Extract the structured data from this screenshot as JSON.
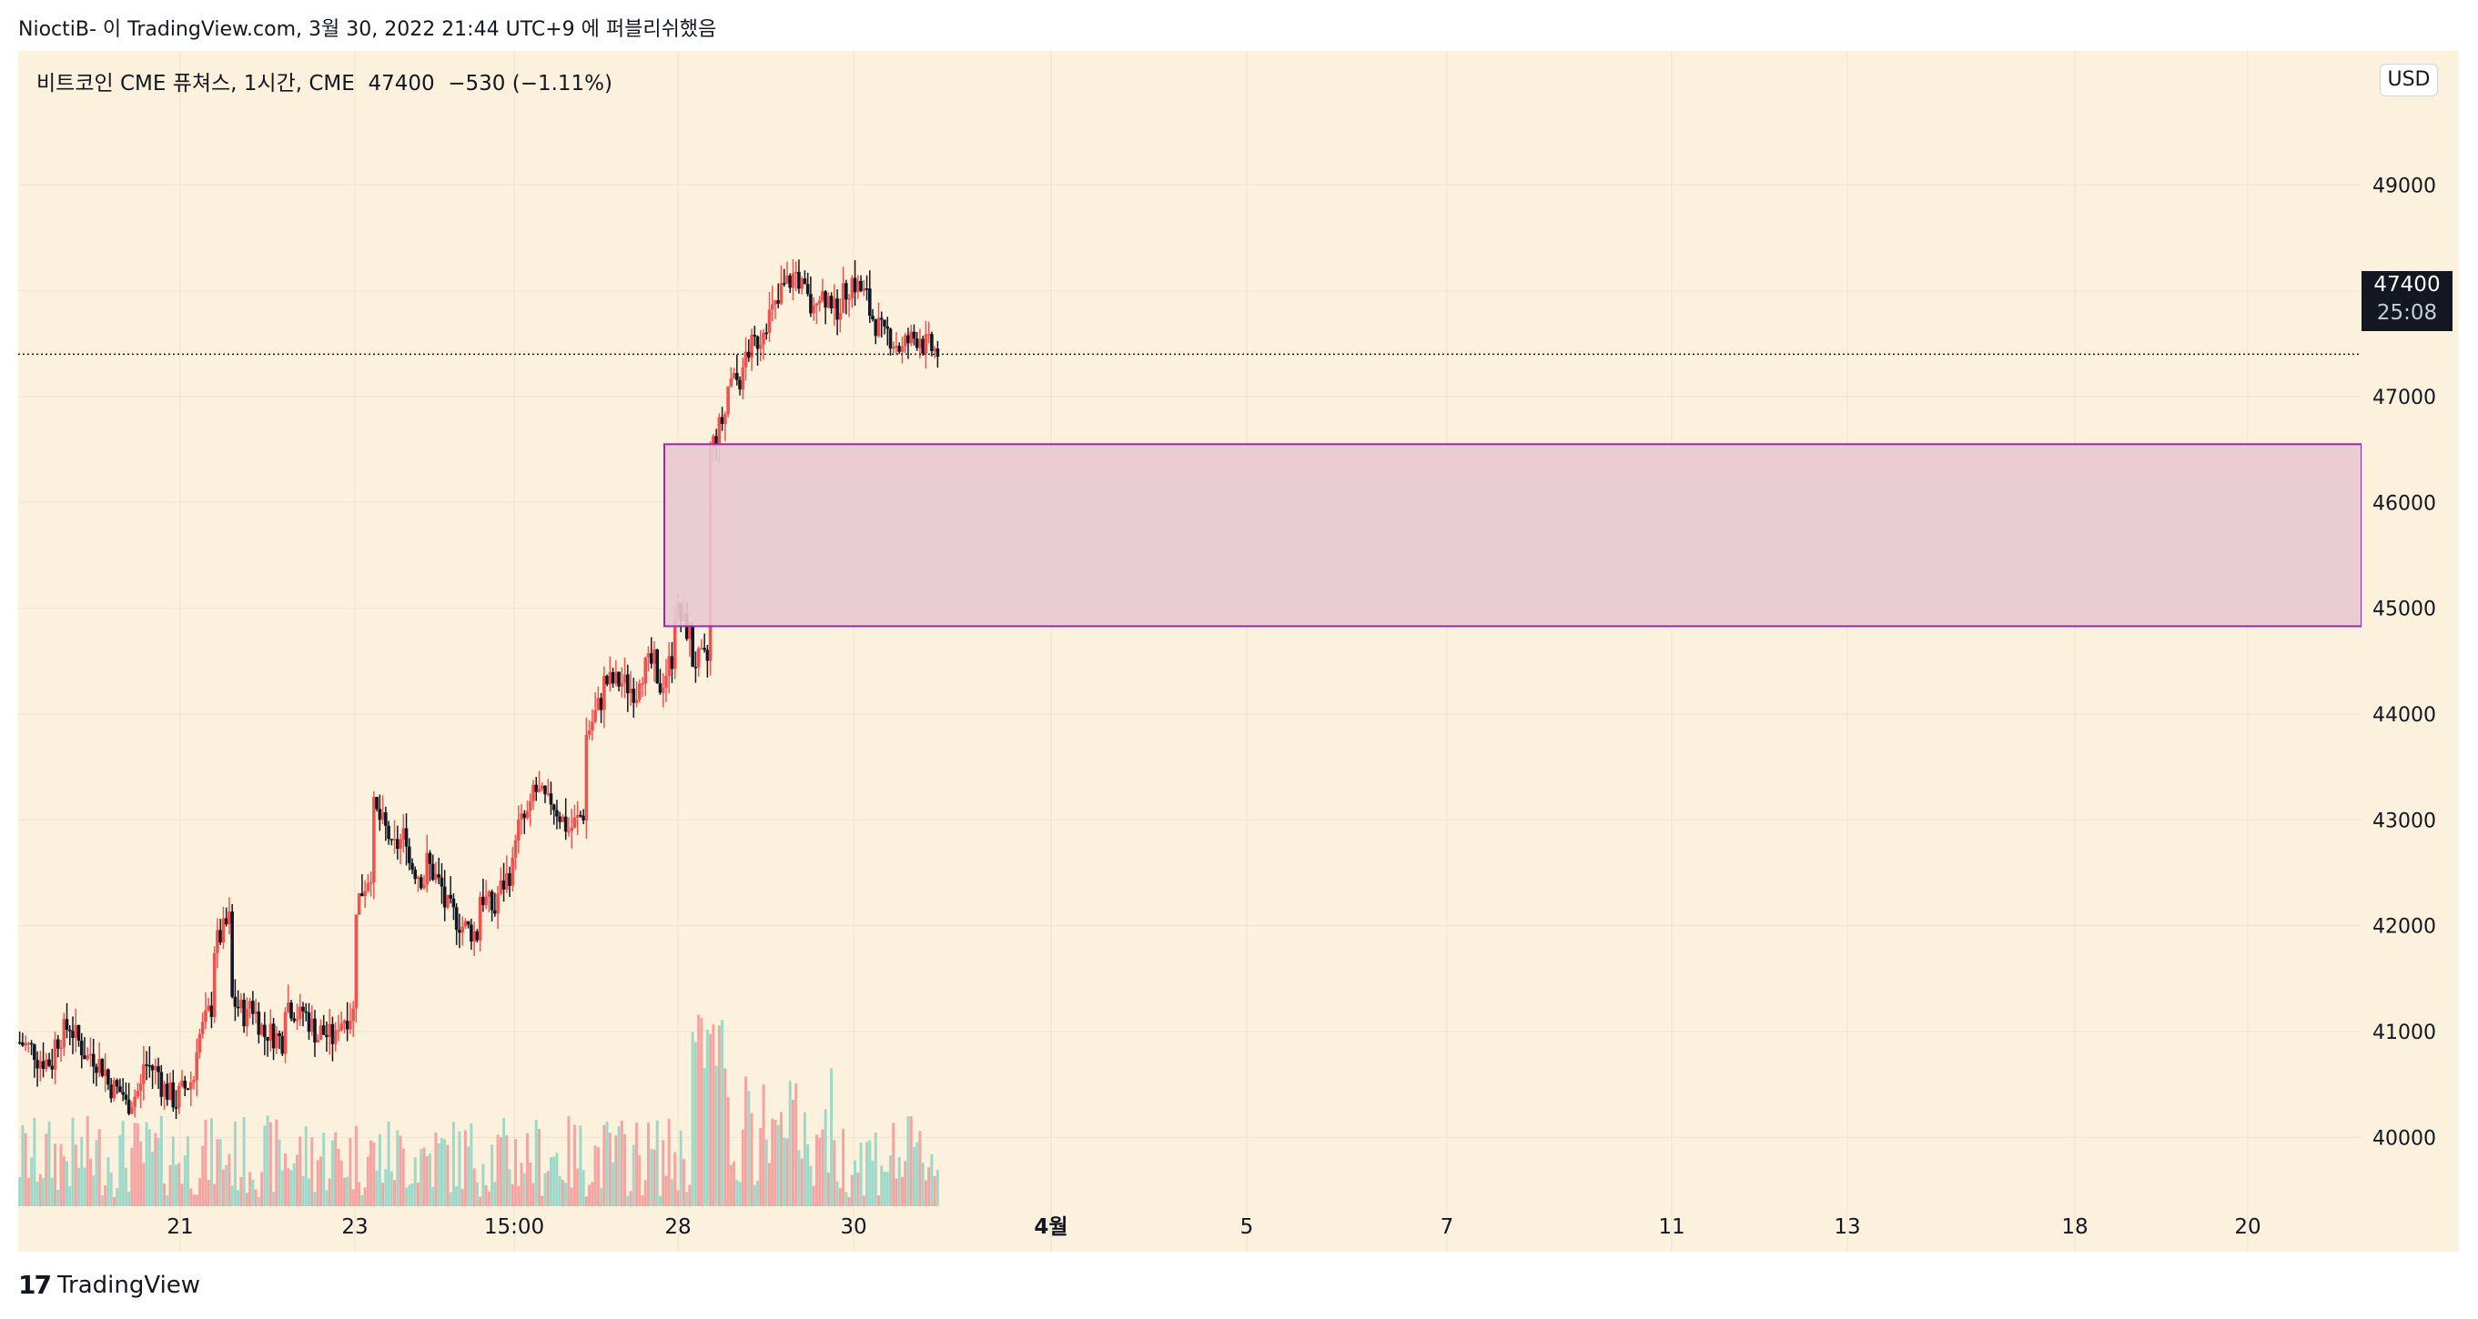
{
  "header": {
    "text": "NioctiB- 이 TradingView.com, 3월 30, 2022 21:44 UTC+9 에 퍼블리쉬했음"
  },
  "legend": {
    "title": "비트코인 CME 퓨쳐스, 1시간, CME",
    "last": "47400",
    "change": "−530 (−1.11%)"
  },
  "currency_button": "USD",
  "price_label": {
    "value": "47400",
    "countdown": "25:08"
  },
  "footer": {
    "logo": "17",
    "brand": "TradingView"
  },
  "colors": {
    "background": "#fcf1dc",
    "up": "#ef5350",
    "down": "#131722",
    "zone_fill": "#e8c8d2",
    "zone_border": "#9c27b0"
  },
  "chart_data": {
    "type": "candlestick",
    "title": "비트코인 CME 퓨쳐스, 1시간, CME",
    "y_ticks": [
      "40000",
      "41000",
      "42000",
      "43000",
      "44000",
      "45000",
      "46000",
      "47000",
      "48000",
      "49000"
    ],
    "x_ticks": [
      "21",
      "23",
      "15:00",
      "28",
      "30",
      "4월",
      "5",
      "7",
      "11",
      "13",
      "18",
      "20"
    ],
    "ylim": [
      39350,
      49750
    ],
    "grid": true,
    "zone": {
      "low": 44830,
      "high": 46550,
      "start": "27",
      "color": "#e8c8d2",
      "border": "#9c27b0"
    },
    "last_price": 47400,
    "price_path": [
      [
        40900,
        40800
      ],
      [
        40750,
        40700
      ],
      [
        40900,
        41100
      ],
      [
        41000,
        40700
      ],
      [
        40800,
        40600
      ],
      [
        40500,
        40400
      ],
      [
        40300,
        40500
      ],
      [
        40700,
        40600
      ],
      [
        40500,
        40300
      ],
      [
        40400,
        40600
      ],
      [
        40900,
        41300
      ],
      [
        41800,
        42100
      ],
      [
        41300,
        41100
      ],
      [
        41300,
        40900
      ],
      [
        41000,
        40900
      ],
      [
        41300,
        41100
      ],
      [
        41200,
        40900
      ],
      [
        41000,
        40900
      ],
      [
        41100,
        41200
      ],
      [
        42200,
        42600
      ],
      [
        43100,
        42800
      ],
      [
        42700,
        42900
      ],
      [
        42600,
        42400
      ],
      [
        42600,
        42300
      ],
      [
        42200,
        42000
      ],
      [
        42000,
        41900
      ],
      [
        42300,
        42100
      ],
      [
        42300,
        42600
      ],
      [
        42900,
        43100
      ],
      [
        43300,
        43100
      ],
      [
        43200,
        42900
      ],
      [
        42900,
        43100
      ],
      [
        43800,
        44200
      ],
      [
        44300,
        44300
      ],
      [
        44300,
        44200
      ],
      [
        44400,
        44500
      ],
      [
        44200,
        44600
      ],
      [
        45000,
        44700
      ],
      [
        44500,
        44500
      ],
      [
        46500,
        46900
      ],
      [
        47100,
        47200
      ],
      [
        47400,
        47600
      ],
      [
        47700,
        47900
      ],
      [
        48000,
        48200
      ],
      [
        48100,
        47700
      ],
      [
        48000,
        47900
      ],
      [
        47800,
        48100
      ],
      [
        48100,
        47900
      ],
      [
        47800,
        47500
      ],
      [
        47600,
        47400
      ],
      [
        47500,
        47600
      ],
      [
        47500,
        47400
      ]
    ],
    "volume_note": "relative volume bars at bottom of plot"
  }
}
